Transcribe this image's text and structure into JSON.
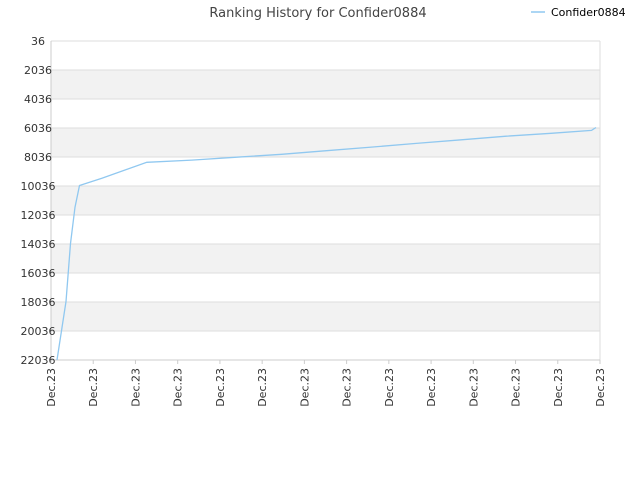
{
  "chart_data": {
    "type": "line",
    "title": "Ranking History for Confider0884",
    "xlabel": "",
    "ylabel": "",
    "y_reversed": true,
    "ylim": [
      36,
      22036
    ],
    "yticks": [
      "36",
      "2036",
      "4036",
      "6036",
      "8036",
      "10036",
      "12036",
      "14036",
      "16036",
      "18036",
      "20036",
      "22036"
    ],
    "xticks": [
      "Dec.23",
      "Dec.23",
      "Dec.23",
      "Dec.23",
      "Dec.23",
      "Dec.23",
      "Dec.23",
      "Dec.23",
      "Dec.23",
      "Dec.23",
      "Dec.23",
      "Dec.23",
      "Dec.23",
      "Dec.23"
    ],
    "legend_position": "top-right",
    "grid": true,
    "band_colors": [
      "#ffffff",
      "#f2f2f2"
    ],
    "series": [
      {
        "name": "Confider0884",
        "color": "#90c8f0",
        "x": [
          0.0,
          0.2,
          0.3,
          0.4,
          0.5,
          1.0,
          2.0,
          3.0,
          4.0,
          5.0,
          6.0,
          7.0,
          8.0,
          9.0,
          10.0,
          11.0,
          11.9,
          12.0
        ],
        "y": [
          22036,
          18000,
          14000,
          11500,
          10000,
          9500,
          8400,
          8250,
          8050,
          7850,
          7600,
          7350,
          7100,
          6850,
          6600,
          6400,
          6200,
          6000
        ]
      }
    ]
  }
}
